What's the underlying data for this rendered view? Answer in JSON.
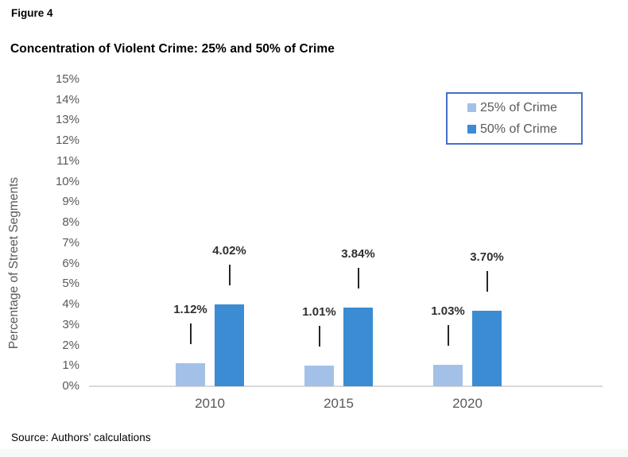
{
  "figure_label": "Figure 4",
  "title": "Concentration of Violent Crime: 25% and 50% of Crime",
  "source": "Source: Authors’ calculations",
  "colors": {
    "series_light_blue": "#a3c1e8",
    "series_dark_blue": "#3b8cd3",
    "legend_border": "#4472c4",
    "axis_line": "#d9d9d9",
    "axis_text": "#595959",
    "data_label_text": "#303030"
  },
  "chart_data": {
    "type": "bar",
    "title": "Concentration of Violent Crime: 25% and 50% of Crime",
    "categories": [
      "2010",
      "2015",
      "2020"
    ],
    "series": [
      {
        "name": "25% of Crime",
        "color": "#a3c1e8",
        "values": [
          1.12,
          1.01,
          1.03
        ],
        "labels": [
          "1.12%",
          "1.01%",
          "1.03%"
        ]
      },
      {
        "name": "50% of Crime",
        "color": "#3b8cd3",
        "values": [
          4.02,
          3.84,
          3.7
        ],
        "labels": [
          "4.02%",
          "3.84%",
          "3.70%"
        ]
      }
    ],
    "xlabel": "",
    "ylabel": "Percentage of Street Segments",
    "ylim": [
      0,
      15
    ],
    "ytick_step": 1,
    "ytick_suffix": "%",
    "grid": false,
    "legend_position": "top-right",
    "data_labels": true
  }
}
